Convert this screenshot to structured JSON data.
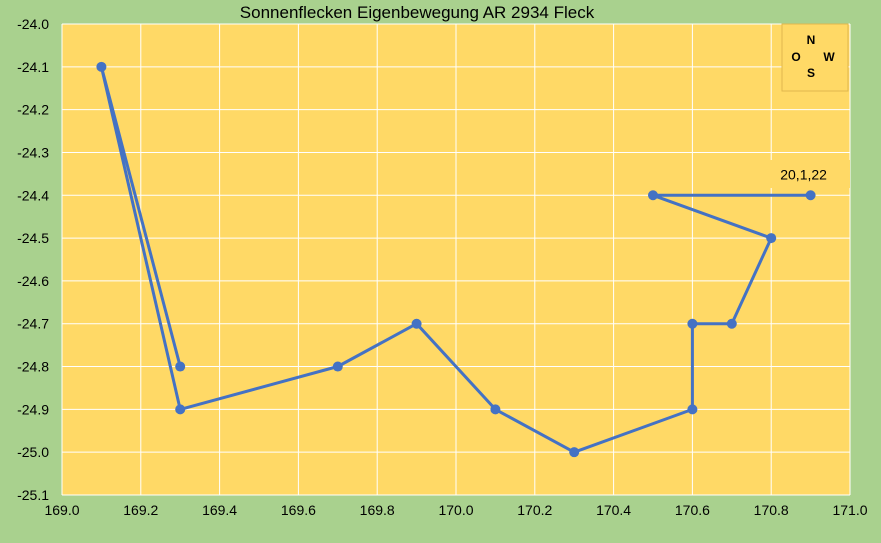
{
  "chart_data": {
    "type": "line",
    "title": "Sonnenflecken Eigenbewegung AR 2934 Fleck",
    "xlabel": "",
    "ylabel": "",
    "xlim": [
      169.0,
      171.0
    ],
    "ylim": [
      -25.1,
      -24.0
    ],
    "x_ticks": [
      "169.0",
      "169.2",
      "169.4",
      "169.6",
      "169.8",
      "170.0",
      "170.2",
      "170.4",
      "170.6",
      "170.8",
      "171.0"
    ],
    "y_ticks": [
      "-24.0",
      "-24.1",
      "-24.2",
      "-24.3",
      "-24.4",
      "-24.5",
      "-24.6",
      "-24.7",
      "-24.8",
      "-24.9",
      "-25.0",
      "-25.1"
    ],
    "grid": true,
    "series": [
      {
        "points": [
          {
            "x": 169.3,
            "y": -24.8
          },
          {
            "x": 169.1,
            "y": -24.1
          },
          {
            "x": 169.3,
            "y": -24.9
          },
          {
            "x": 169.7,
            "y": -24.8
          },
          {
            "x": 169.9,
            "y": -24.7
          },
          {
            "x": 170.1,
            "y": -24.9
          },
          {
            "x": 170.3,
            "y": -25.0
          },
          {
            "x": 170.6,
            "y": -24.9
          },
          {
            "x": 170.6,
            "y": -24.7
          },
          {
            "x": 170.7,
            "y": -24.7
          },
          {
            "x": 170.8,
            "y": -24.5
          },
          {
            "x": 170.5,
            "y": -24.4
          },
          {
            "x": 170.9,
            "y": -24.4
          }
        ]
      }
    ],
    "annotation": {
      "text": "20,1,22",
      "x": 170.9,
      "y": -24.4
    },
    "compass": {
      "n": "N",
      "s": "S",
      "o": "O",
      "w": "W"
    },
    "colors": {
      "background": "#a9d18e",
      "plot_area": "#ffd966",
      "line": "#4472c4",
      "grid": "#ffffff"
    }
  }
}
